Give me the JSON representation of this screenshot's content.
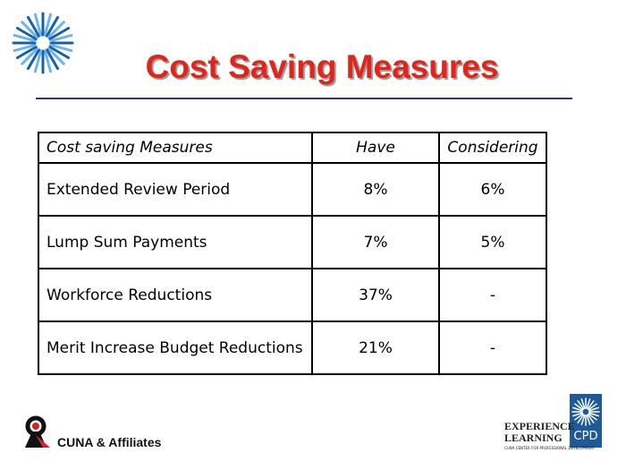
{
  "header": {
    "title": "Cost Saving Measures"
  },
  "table": {
    "headers": [
      "Cost saving Measures",
      "Have",
      "Considering"
    ],
    "rows": [
      [
        "Extended Review Period",
        "8%",
        "6%"
      ],
      [
        "Lump Sum Payments",
        "7%",
        "5%"
      ],
      [
        "Workforce Reductions",
        "37%",
        "-"
      ],
      [
        "Merit Increase Budget Reductions",
        "21%",
        "-"
      ]
    ]
  },
  "footer": {
    "left_logo": "CUNA & Affiliates",
    "right_logo": {
      "line1": "EXPERIENCE",
      "line2": "LEARNING",
      "badge": "CPD",
      "tagline": "CUNA CENTER FOR PROFESSIONAL DEVELOPMENT"
    }
  }
}
